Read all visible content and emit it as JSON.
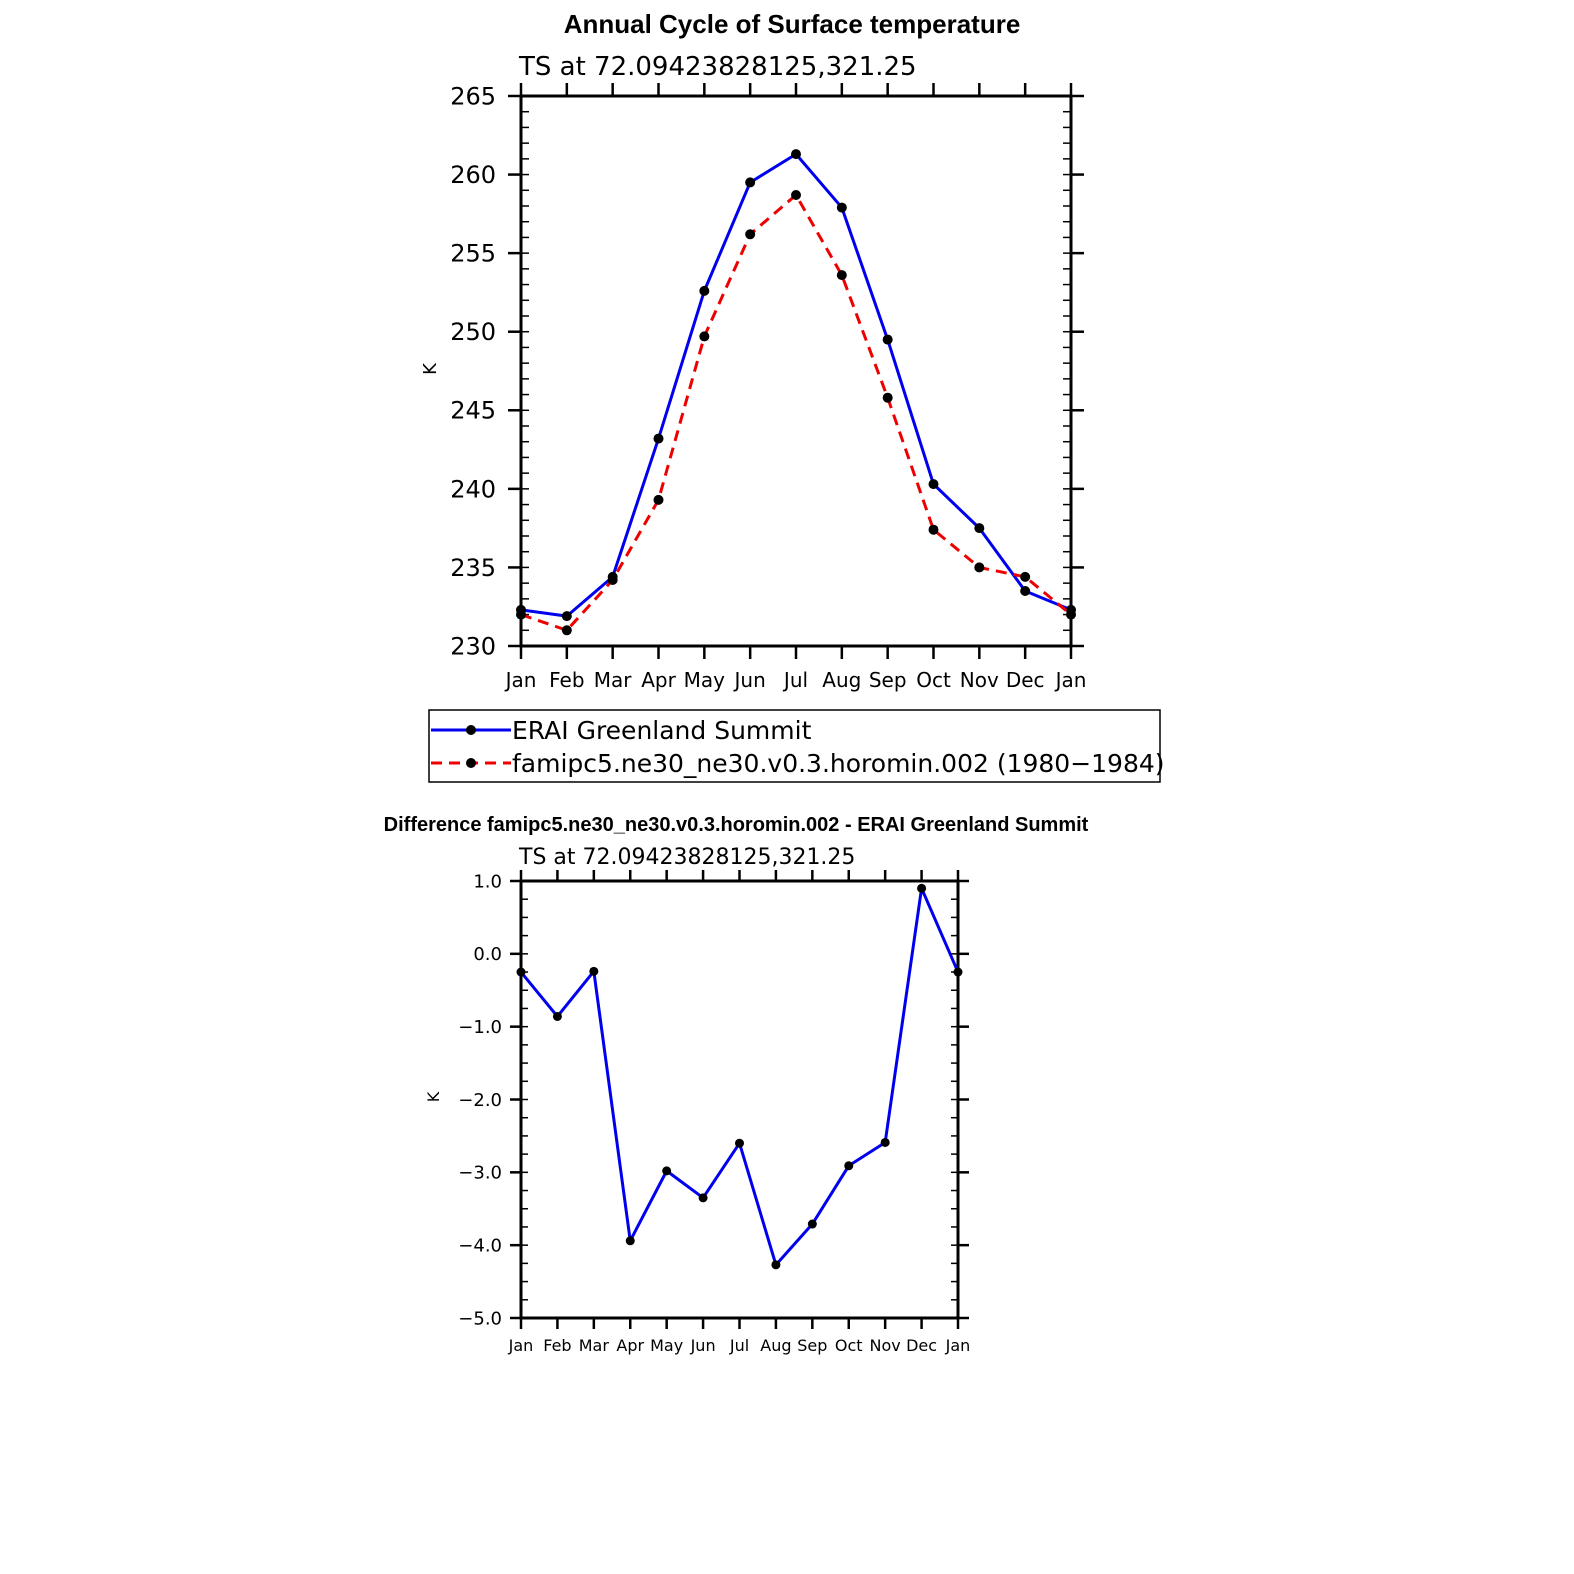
{
  "chart_data": [
    {
      "type": "line",
      "title": "Annual Cycle of Surface temperature",
      "subtitle": "TS at 72.09423828125,321.25",
      "xlabel": "",
      "ylabel": "K",
      "categories": [
        "Jan",
        "Feb",
        "Mar",
        "Apr",
        "May",
        "Jun",
        "Jul",
        "Aug",
        "Sep",
        "Oct",
        "Nov",
        "Dec",
        "Jan"
      ],
      "ylim": [
        230,
        265
      ],
      "yticks": [
        230,
        235,
        240,
        245,
        250,
        255,
        260,
        265
      ],
      "ytick_labels": [
        "230",
        "235",
        "240",
        "245",
        "250",
        "255",
        "260",
        "265"
      ],
      "legend_placement": "bottom",
      "series": [
        {
          "name": "ERAI Greenland Summit",
          "color": "#0000ee",
          "dash": "solid",
          "values": [
            232.3,
            231.9,
            234.4,
            243.2,
            252.6,
            259.5,
            261.3,
            257.9,
            249.5,
            240.3,
            237.5,
            233.5,
            232.3
          ]
        },
        {
          "name": "famipc5.ne30_ne30.v0.3.horomin.002 (1980−1984)",
          "color": "#ee0000",
          "dash": "dashed",
          "values": [
            232.0,
            231.0,
            234.2,
            239.3,
            249.7,
            256.2,
            258.7,
            253.6,
            245.8,
            237.4,
            235.0,
            234.4,
            232.0
          ]
        }
      ]
    },
    {
      "type": "line",
      "title": "Difference famipc5.ne30_ne30.v0.3.horomin.002 - ERAI Greenland Summit",
      "subtitle": "TS at 72.09423828125,321.25",
      "xlabel": "",
      "ylabel": "K",
      "categories": [
        "Jan",
        "Feb",
        "Mar",
        "Apr",
        "May",
        "Jun",
        "Jul",
        "Aug",
        "Sep",
        "Oct",
        "Nov",
        "Dec",
        "Jan"
      ],
      "ylim": [
        -5.0,
        1.0
      ],
      "yticks": [
        -5,
        -4,
        -3,
        -2,
        -1,
        0,
        1
      ],
      "ytick_labels": [
        "−5.0",
        "−4.0",
        "−3.0",
        "−2.0",
        "−1.0",
        "0.0",
        "1.0"
      ],
      "series": [
        {
          "name": "Difference",
          "color": "#0000ee",
          "dash": "solid",
          "values": [
            -0.25,
            -0.86,
            -0.24,
            -3.94,
            -2.98,
            -3.35,
            -2.6,
            -4.27,
            -3.71,
            -2.91,
            -2.59,
            0.9,
            -0.25
          ]
        }
      ]
    }
  ]
}
